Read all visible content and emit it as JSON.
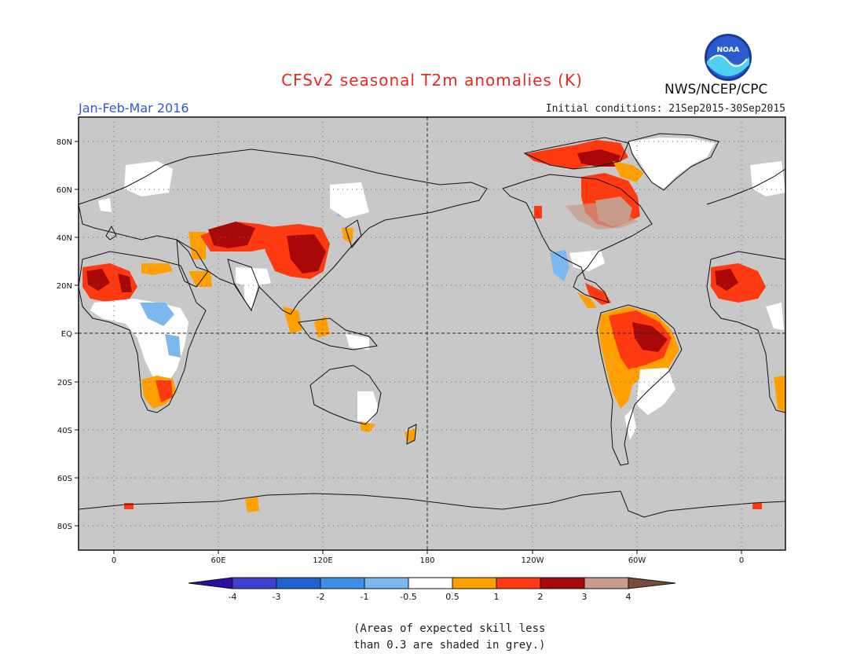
{
  "title": "CFSv2 seasonal T2m anomalies (K)",
  "period": "Jan-Feb-Mar 2016",
  "initial_conditions": "Initial conditions: 21Sep2015-30Sep2015",
  "agency": "NWS/NCEP/CPC",
  "logo_text": "NOAA",
  "lat_labels": [
    "80N",
    "60N",
    "40N",
    "20N",
    "EQ",
    "20S",
    "40S",
    "60S",
    "80S"
  ],
  "lon_labels": [
    "0",
    "60E",
    "120E",
    "180",
    "120W",
    "60W",
    "0"
  ],
  "colorbar": {
    "labels": [
      "-4",
      "-3",
      "-2",
      "-1",
      "-0.5",
      "0.5",
      "1",
      "2",
      "3",
      "4"
    ],
    "colors": [
      "#2d0fa6",
      "#3f3fd0",
      "#1f63d2",
      "#3c90ea",
      "#7cb8f0",
      "#ffffff",
      "#ffa000",
      "#ff3a10",
      "#a80808",
      "#c89a8a",
      "#7a4a3a"
    ]
  },
  "note_lines": [
    "(Areas of expected skill less",
    "than 0.3 are shaded in grey.)"
  ]
}
